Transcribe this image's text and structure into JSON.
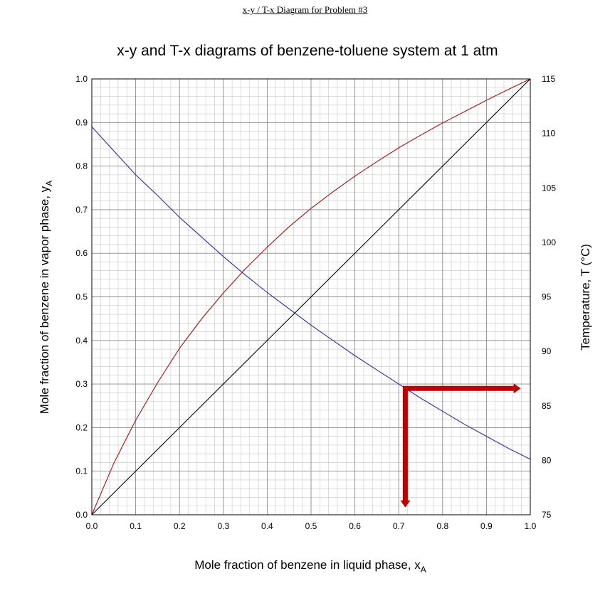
{
  "header": "x-y / T-x Diagram for Problem #3",
  "chart_data": {
    "type": "line",
    "title": "x-y and T-x diagrams of benzene-toluene system at 1 atm",
    "xlabel": "Mole fraction of benzene in liquid phase, x",
    "xlabel_sub": "A",
    "ylabel": "Mole fraction of benzene in vapor phase, y",
    "ylabel_sub": "A",
    "y2label": "Temperature, T (°C)",
    "xlim": [
      0,
      1
    ],
    "ylim": [
      0,
      1
    ],
    "y2lim": [
      75,
      115
    ],
    "grid": true,
    "x_ticks": [
      "0.0",
      "0.1",
      "0.2",
      "0.3",
      "0.4",
      "0.5",
      "0.6",
      "0.7",
      "0.8",
      "0.9",
      "1.0"
    ],
    "y_ticks": [
      "0.0",
      "0.1",
      "0.2",
      "0.3",
      "0.4",
      "0.5",
      "0.6",
      "0.7",
      "0.8",
      "0.9",
      "1.0"
    ],
    "y2_ticks": [
      "75",
      "80",
      "85",
      "90",
      "95",
      "100",
      "105",
      "110",
      "115"
    ],
    "series": [
      {
        "axis": "left",
        "color": "#000000",
        "x": [
          0,
          1
        ],
        "y": [
          0,
          1
        ]
      },
      {
        "axis": "left",
        "color": "#aa1111",
        "x": [
          0,
          0.05,
          0.1,
          0.15,
          0.2,
          0.25,
          0.3,
          0.35,
          0.4,
          0.45,
          0.5,
          0.55,
          0.6,
          0.65,
          0.7,
          0.75,
          0.8,
          0.85,
          0.9,
          0.95,
          1.0
        ],
        "y": [
          0,
          0.118,
          0.217,
          0.303,
          0.382,
          0.449,
          0.509,
          0.564,
          0.614,
          0.661,
          0.703,
          0.741,
          0.777,
          0.81,
          0.842,
          0.871,
          0.899,
          0.925,
          0.951,
          0.976,
          1.0
        ]
      },
      {
        "axis": "right",
        "color": "#2a2ab0",
        "x": [
          0,
          0.05,
          0.1,
          0.15,
          0.2,
          0.25,
          0.3,
          0.35,
          0.4,
          0.45,
          0.5,
          0.55,
          0.6,
          0.65,
          0.7,
          0.75,
          0.8,
          0.85,
          0.9,
          0.95,
          1.0
        ],
        "y": [
          110.6,
          108.4,
          106.2,
          104.3,
          102.3,
          100.5,
          98.7,
          97.0,
          95.4,
          93.9,
          92.4,
          91.0,
          89.6,
          88.3,
          87.0,
          85.7,
          84.5,
          83.3,
          82.2,
          81.1,
          80.1
        ]
      }
    ],
    "annotations": [
      {
        "type": "arrow-down",
        "color": "#c00000",
        "x": 0.715,
        "y_from": 0.29,
        "y_to": 0.02
      },
      {
        "type": "arrow-right",
        "color": "#c00000",
        "y": 0.29,
        "x_from": 0.715,
        "x_to": 0.975
      }
    ]
  }
}
